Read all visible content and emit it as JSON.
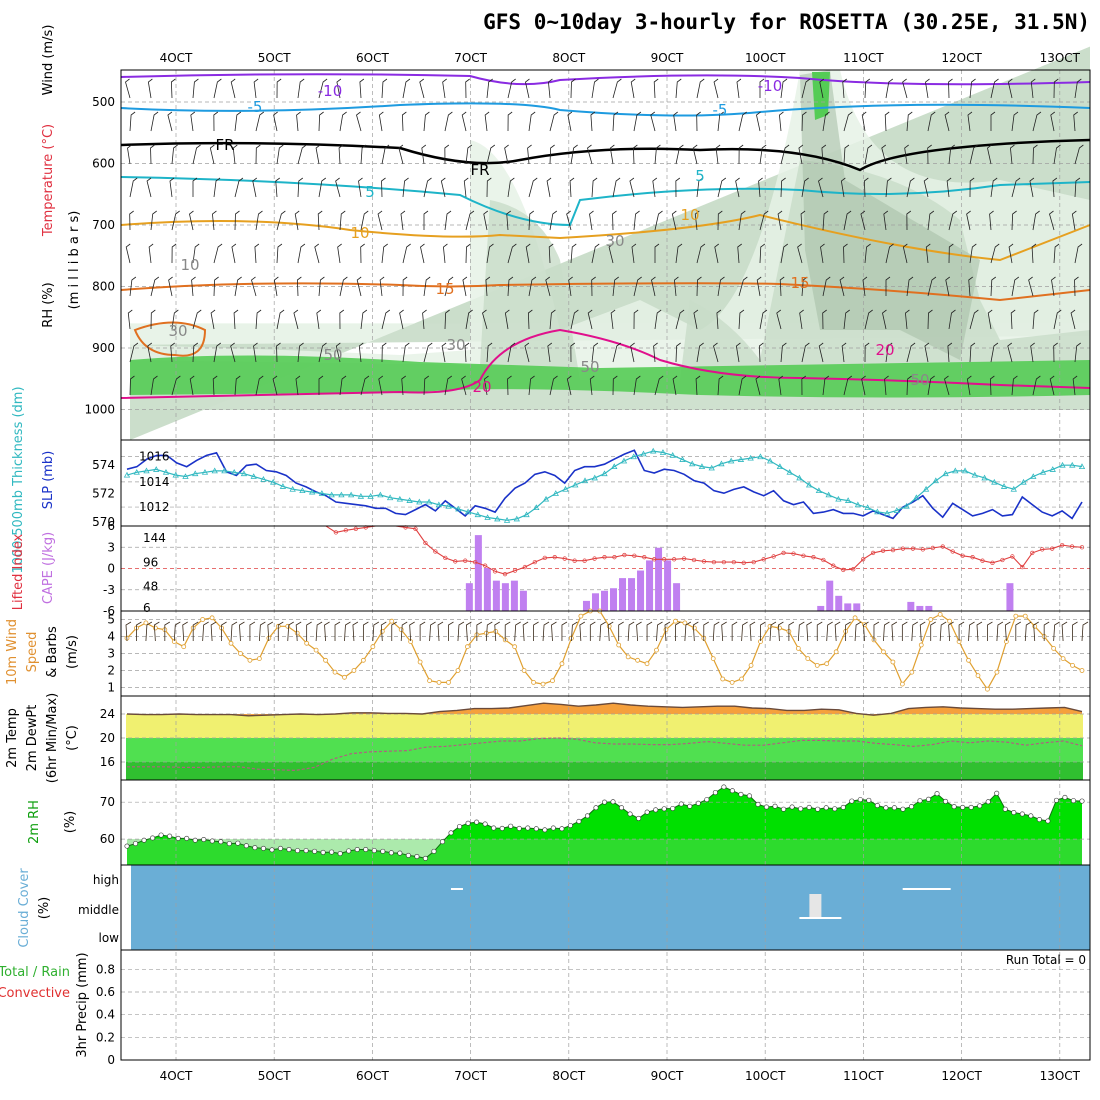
{
  "title": "GFS 0~10day 3-hourly for ROSETTA (30.25E, 31.5N)",
  "x_ticks": [
    "4OCT",
    "5OCT",
    "6OCT",
    "7OCT",
    "8OCT",
    "9OCT",
    "10OCT",
    "11OCT",
    "12OCT",
    "13OCT"
  ],
  "colors": {
    "grid": "#a0a0a0",
    "rh_light": "#e6f2e6",
    "rh_mid": "#c8dcc8",
    "rh_dark": "#a8bfa8",
    "rh_green": "#55cc55",
    "temp_neg10": "#8a2be2",
    "temp_neg5": "#1e9be0",
    "temp_5": "#1eb4c8",
    "temp_10": "#e6a020",
    "temp_15": "#e07020",
    "temp_20": "#e0108c",
    "slp": "#1a32c8",
    "thickness": "#30b8c0",
    "lifted_index": "#e04040",
    "cape": "#c080f0",
    "wind_speed": "#e0a030",
    "temp_max": "#f5a03c",
    "temp_band": "#f0f070",
    "dewpt_band": "#50e050",
    "dewpt_dark": "#30c030",
    "rh2m": "#00e000",
    "rh2m_dark": "#22b022",
    "cloud": "#6aaed6"
  },
  "panels": {
    "upper": {
      "ylabel": "(m i l l i b a r s)",
      "label_wind": "Wind (m/s)",
      "label_temp": "Temperature (°C)",
      "label_rh": "RH (%)",
      "y_ticks": [
        "500",
        "600",
        "700",
        "800",
        "900",
        "1000"
      ],
      "contour_labels": [
        "-10",
        "-10",
        "-5",
        "-5",
        "FR",
        "FR",
        "5",
        "5",
        "10",
        "10",
        "15",
        "15",
        "20",
        "20",
        "10",
        "30",
        "30",
        "30",
        "50",
        "50",
        "50"
      ]
    },
    "slp": {
      "label_thick": "1000-500mb Thickness (dm)",
      "label_slp": "SLP (mb)",
      "left_ticks": [
        "574",
        "572",
        "570"
      ],
      "right_ticks": [
        "1016",
        "1014",
        "1012"
      ]
    },
    "cape": {
      "label_li": "Lifted Index",
      "label_cape": "CAPE (J/kg)",
      "left_ticks": [
        "-6",
        "-3",
        "0",
        "3",
        "6"
      ],
      "right_ticks": [
        "144",
        "96",
        "48",
        "6"
      ]
    },
    "wind10m": {
      "label_a": "10m Wind",
      "label_b": "Speed",
      "label_c": "& Barbs",
      "unit": "(m/s)",
      "y_ticks": [
        "5",
        "4",
        "3",
        "2",
        "1"
      ]
    },
    "temp2m": {
      "label_a": "2m Temp",
      "label_b": "2m DewPt",
      "label_c": "(6hr Min/Max)",
      "unit": "(°C)",
      "y_ticks": [
        "24",
        "20",
        "16"
      ]
    },
    "rh2m": {
      "label": "2m RH",
      "unit": "(%)",
      "y_ticks": [
        "70",
        "60"
      ]
    },
    "cloud": {
      "label": "Cloud Cover",
      "unit": "(%)",
      "y_ticks": [
        "high",
        "middle",
        "low"
      ]
    },
    "precip": {
      "label_a": "Total / Rain",
      "label_b": "Convective",
      "label_c": "3hr Precip (mm)",
      "y_ticks": [
        "0.8",
        "0.6",
        "0.4",
        "0.2",
        "0"
      ],
      "run_total": "Run Total = 0"
    }
  },
  "chart_data": [
    {
      "type": "line",
      "name": "SLP",
      "ylim": [
        1010.5,
        1017
      ],
      "values": [
        1015,
        1015.2,
        1015.8,
        1016.1,
        1016.1,
        1015.5,
        1015.2,
        1015.7,
        1016.1,
        1016.3,
        1014.8,
        1014.5,
        1015.3,
        1015.4,
        1014.9,
        1014.8,
        1014.5,
        1013.9,
        1013.6,
        1013.2,
        1012.9,
        1012.4,
        1012.3,
        1012.2,
        1012.1,
        1011.9,
        1011.9,
        1011.5,
        1011.4,
        1011.8,
        1012.2,
        1011.7,
        1012.5,
        1011.9,
        1011.3,
        1012.1,
        1011.9,
        1011.6,
        1012.7,
        1013.5,
        1013.9,
        1014.6,
        1014.8,
        1014.5,
        1013.9,
        1014.9,
        1015.2,
        1015.2,
        1015.4,
        1015.8,
        1016.2,
        1016.5,
        1014.9,
        1014.7,
        1015,
        1014.9,
        1014.6,
        1014.1,
        1013.9,
        1013.3,
        1013.1,
        1013.4,
        1013.6,
        1013.2,
        1012.9,
        1013.3,
        1012.5,
        1012.2,
        1012.4,
        1011.5,
        1011.6,
        1011.8,
        1011.5,
        1011.5,
        1011.3,
        1011.7,
        1011.4,
        1011.1,
        1012,
        1012.4,
        1012.9,
        1011.9,
        1011.2,
        1012.3,
        1011.8,
        1011.3,
        1011.5,
        1011.8,
        1011.3,
        1011.4,
        1012.8,
        1012.2,
        1011.6,
        1011.3,
        1011.7,
        1011.1,
        1012.4
      ]
    },
    {
      "type": "line",
      "name": "Thickness",
      "ylim": [
        569.7,
        575.5
      ],
      "values": [
        573.3,
        573.5,
        573.6,
        573.7,
        573.5,
        573.3,
        573.2,
        573.4,
        573.5,
        573.6,
        573.6,
        573.5,
        573.4,
        573.2,
        573,
        572.8,
        572.5,
        572.3,
        572.2,
        572.1,
        572,
        571.9,
        571.9,
        571.9,
        571.8,
        571.8,
        571.9,
        571.7,
        571.6,
        571.5,
        571.4,
        571.4,
        571.2,
        571.1,
        570.9,
        570.7,
        570.5,
        570.3,
        570.2,
        570.1,
        570.2,
        570.5,
        571,
        571.6,
        572,
        572.3,
        572.6,
        572.9,
        573.1,
        573.4,
        573.9,
        574.3,
        574.6,
        574.8,
        575,
        574.9,
        574.7,
        574.4,
        574.1,
        573.9,
        573.8,
        574.1,
        574.3,
        574.4,
        574.5,
        574.6,
        574.3,
        573.9,
        573.5,
        573.1,
        572.6,
        572.2,
        571.9,
        571.6,
        571.5,
        571.2,
        571,
        570.7,
        570.6,
        570.8,
        571.1,
        571.7,
        572.3,
        572.9,
        573.4,
        573.6,
        573.6,
        573.3,
        573.1,
        572.8,
        572.5,
        572.3,
        572.8,
        573.2,
        573.5,
        573.7,
        574,
        574,
        573.9
      ]
    },
    {
      "type": "line",
      "name": "Lifted Index",
      "ylim": [
        6,
        -6
      ],
      "values": [
        6,
        6,
        6,
        6,
        6,
        6,
        6,
        6,
        6,
        6,
        6,
        6,
        6,
        6,
        6,
        6,
        6,
        6,
        6,
        6,
        6,
        5.1,
        5.4,
        5.6,
        5.8,
        6,
        6,
        6,
        5.8,
        5.6,
        3.6,
        2.4,
        1.5,
        1,
        1.1,
        0.9,
        0.4,
        -0.4,
        -0.8,
        -0.3,
        0.2,
        0.9,
        1.5,
        1.6,
        1.4,
        1.1,
        1.1,
        1.4,
        1.6,
        1.6,
        1.9,
        1.8,
        1.6,
        1.3,
        1.3,
        1.3,
        1.4,
        1.2,
        1,
        0.9,
        0.9,
        0.9,
        0.8,
        0.9,
        1.3,
        1.7,
        2.2,
        2.1,
        1.8,
        1.6,
        1.2,
        0.4,
        -0.2,
        -0.1,
        1.3,
        2.2,
        2.5,
        2.6,
        2.8,
        2.8,
        2.7,
        2.9,
        3.1,
        2.4,
        1.8,
        1.6,
        1.1,
        0.8,
        1.2,
        1.7,
        0.2,
        2.2,
        2.7,
        2.8,
        3.3,
        3.1,
        3
      ]
    },
    {
      "type": "bar",
      "name": "CAPE",
      "ylim": [
        0,
        168
      ],
      "values": [
        0,
        0,
        0,
        0,
        0,
        0,
        0,
        0,
        0,
        0,
        0,
        0,
        0,
        0,
        0,
        0,
        0,
        0,
        0,
        0,
        0,
        0,
        0,
        0,
        0,
        0,
        0,
        0,
        0,
        0,
        0,
        0,
        0,
        0,
        0,
        0,
        0,
        0,
        55,
        150,
        85,
        60,
        55,
        60,
        40,
        0,
        0,
        0,
        0,
        0,
        0,
        20,
        35,
        40,
        45,
        65,
        65,
        80,
        100,
        125,
        100,
        55,
        0,
        0,
        0,
        0,
        0,
        0,
        0,
        0,
        0,
        0,
        0,
        0,
        0,
        0,
        0,
        10,
        60,
        30,
        15,
        15,
        0,
        0,
        0,
        0,
        0,
        18,
        10,
        10,
        0,
        0,
        0,
        0,
        0,
        0,
        0,
        0,
        55,
        0,
        0,
        0,
        0,
        0,
        0,
        0,
        0
      ]
    },
    {
      "type": "line",
      "name": "10m Wind Speed",
      "ylim": [
        0.5,
        5.5
      ],
      "values": [
        3.9,
        4.5,
        4.8,
        4.5,
        4.4,
        3.7,
        3.4,
        4.5,
        5,
        5.1,
        4.5,
        3.6,
        3,
        2.6,
        2.7,
        3.9,
        4.6,
        4.6,
        4.2,
        3.6,
        3.2,
        2.6,
        1.9,
        1.6,
        2,
        2.6,
        3.4,
        4.3,
        4.9,
        4.4,
        3.7,
        2.5,
        1.4,
        1.3,
        1.3,
        2,
        3.4,
        4.1,
        4.2,
        4.3,
        3.8,
        3.4,
        2,
        1.3,
        1.2,
        1.4,
        2.4,
        3.9,
        5.2,
        6,
        5.7,
        4.6,
        3.5,
        2.8,
        2.6,
        2.4,
        3.2,
        4.4,
        4.9,
        4.8,
        4.5,
        3.9,
        2.7,
        1.5,
        1.3,
        1.5,
        2.3,
        3.7,
        4.6,
        4.5,
        4.3,
        3.3,
        2.7,
        2.3,
        2.4,
        3.1,
        4.3,
        5.1,
        4.7,
        3.8,
        3.1,
        2.5,
        1.2,
        1.9,
        3.5,
        5,
        5.3,
        4.9,
        3.7,
        2.6,
        1.7,
        0.9,
        1.9,
        3.7,
        5.2,
        5.2,
        4.6,
        4,
        3.3,
        2.7,
        2.3,
        2
      ]
    },
    {
      "type": "area",
      "name": "2m Temp",
      "ylim": [
        13,
        27
      ],
      "values": [
        24,
        23.9,
        23.9,
        24,
        23.9,
        23.9,
        23.9,
        23.7,
        23.8,
        23.9,
        24,
        23.9,
        24,
        24.2,
        24.2,
        24.1,
        24.1,
        24,
        24.4,
        24.6,
        24.9,
        24.9,
        25,
        25.4,
        25.8,
        25.6,
        25.3,
        25.5,
        25.8,
        25.5,
        25.3,
        25.2,
        25.1,
        25.2,
        25.3,
        25.3,
        25,
        24.9,
        24.6,
        24.6,
        24.8,
        24.7,
        24.1,
        23.8,
        24.1,
        24.9,
        25.1,
        25.2,
        25,
        24.9,
        24.8,
        24.8,
        24.9,
        25,
        25.1,
        24.4
      ]
    },
    {
      "type": "line",
      "name": "2m DewPt",
      "ylim": [
        13,
        27
      ],
      "values": [
        15.2,
        15.2,
        15.2,
        15.1,
        15.1,
        15.2,
        15.2,
        14.8,
        14.7,
        14.6,
        15.1,
        16.5,
        17.4,
        17.7,
        17.8,
        17.9,
        18.5,
        18.6,
        18.9,
        19.2,
        19.5,
        19.5,
        19.9,
        20,
        19.8,
        19.2,
        19,
        19,
        18.9,
        18.9,
        19.1,
        19.4,
        19.1,
        18.8,
        18.8,
        19.2,
        19.6,
        19.6,
        19.5,
        19.5,
        19.1,
        18.9,
        18.6,
        18.9,
        19.5,
        19.2,
        19.5,
        19.3,
        18.8,
        19.2,
        19.5,
        18.7
      ]
    },
    {
      "type": "area",
      "name": "2m RH",
      "ylim": [
        53,
        76
      ],
      "values": [
        58.1,
        58.8,
        59.7,
        60.3,
        61.1,
        60.8,
        60.2,
        60.2,
        59.7,
        59.9,
        59.5,
        59.3,
        58.8,
        58.9,
        58.2,
        57.7,
        57.5,
        57.1,
        57.5,
        57.2,
        56.9,
        56.9,
        56.7,
        56.4,
        56.5,
        56.1,
        56.8,
        57.2,
        57.2,
        56.9,
        56.7,
        56.3,
        56.2,
        55.6,
        55.3,
        54.8,
        56.7,
        59.3,
        61.7,
        63.4,
        64.3,
        64.6,
        64.1,
        63,
        62.9,
        63.5,
        62.9,
        63,
        62.8,
        62.5,
        63,
        62.8,
        63.7,
        64.8,
        66.3,
        68.5,
        70,
        70.1,
        68.5,
        66.8,
        65.6,
        67.3,
        67.9,
        68.2,
        68.3,
        69.5,
        68.9,
        69.7,
        70.7,
        72.6,
        74.1,
        73.1,
        72.1,
        71.7,
        69.4,
        68.7,
        68.9,
        68.1,
        68.7,
        68.2,
        68.6,
        68.1,
        68.5,
        68.2,
        68.6,
        70.3,
        70.7,
        70.5,
        69.1,
        68.5,
        68.5,
        68.1,
        68.8,
        70.4,
        70.8,
        72.3,
        70.2,
        68.8,
        68.6,
        68.6,
        69,
        70.1,
        72.4,
        68.1,
        67.2,
        66.8,
        66.3,
        65.3,
        64.9,
        70.5,
        71.3,
        70.4,
        70.3
      ]
    },
    {
      "type": "table",
      "name": "Cloud Cover",
      "ylim": [
        "low",
        "high"
      ],
      "values": [
        {
          "day": 6.8,
          "level": "high"
        },
        {
          "day": 10.45,
          "level": "middle"
        },
        {
          "day": 11.4,
          "level": "high"
        }
      ]
    },
    {
      "type": "bar",
      "name": "3hr Precip",
      "ylim": [
        0,
        0.9
      ],
      "values": [
        0
      ]
    }
  ]
}
